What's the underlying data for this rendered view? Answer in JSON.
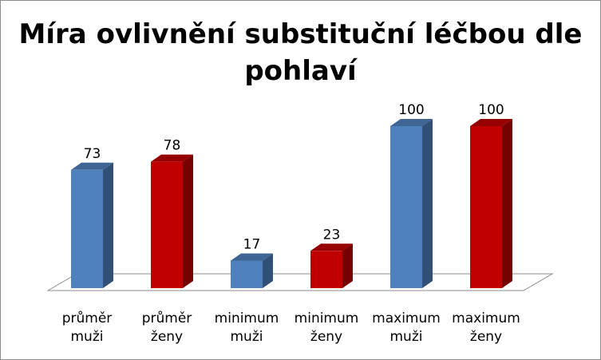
{
  "chart_data": {
    "type": "bar",
    "title": "Míra ovlivnění substituční léčbou dle pohlaví",
    "categories": [
      [
        "průměr",
        "muži"
      ],
      [
        "průměr",
        "ženy"
      ],
      [
        "minimum",
        "muži"
      ],
      [
        "minimum",
        "ženy"
      ],
      [
        "maximum",
        "muži"
      ],
      [
        "maximum",
        "ženy"
      ]
    ],
    "values": [
      73,
      78,
      17,
      23,
      100,
      100
    ],
    "bar_colors": [
      "#4f81bd",
      "#c00000",
      "#4f81bd",
      "#c00000",
      "#4f81bd",
      "#c00000"
    ],
    "data_labels": [
      "73",
      "78",
      "17",
      "23",
      "100",
      "100"
    ],
    "ylim": [
      0,
      100
    ],
    "grid": false,
    "legend": "none",
    "style": "3d-column"
  }
}
